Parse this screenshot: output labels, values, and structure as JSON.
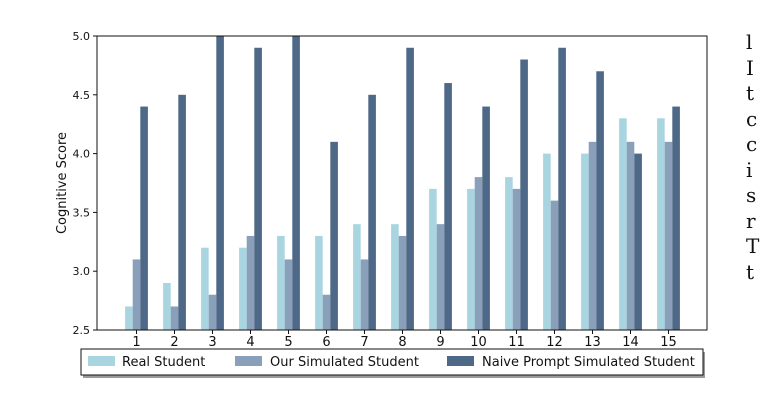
{
  "chart_data": {
    "type": "bar",
    "title": "",
    "xlabel": "",
    "ylabel": "Cognitive Score",
    "ylim": [
      2.5,
      5.0
    ],
    "yticks": [
      "2.5",
      "3.0",
      "3.5",
      "4.0",
      "4.5",
      "5.0"
    ],
    "categories": [
      "1",
      "2",
      "3",
      "4",
      "5",
      "6",
      "7",
      "8",
      "9",
      "10",
      "11",
      "12",
      "13",
      "14",
      "15"
    ],
    "series": [
      {
        "name": "Real Student",
        "color": "#a8d5df",
        "values": [
          2.7,
          2.9,
          3.2,
          3.2,
          3.3,
          3.3,
          3.4,
          3.4,
          3.7,
          3.7,
          3.8,
          4.0,
          4.0,
          4.3,
          4.3
        ]
      },
      {
        "name": "Our Simulated Student",
        "color": "#8a9fba",
        "values": [
          3.1,
          2.7,
          2.8,
          3.3,
          3.1,
          2.8,
          3.1,
          3.3,
          3.4,
          3.8,
          3.7,
          3.6,
          4.1,
          4.1,
          4.1
        ]
      },
      {
        "name": "Naive Prompt Simulated Student",
        "color": "#4e6987",
        "values": [
          4.4,
          4.5,
          5.0,
          4.9,
          5.0,
          4.1,
          4.5,
          4.9,
          4.6,
          4.4,
          4.8,
          4.9,
          4.7,
          4.0,
          4.4
        ]
      }
    ],
    "grid": false,
    "legend_position": "bottom"
  },
  "page_edge_glyphs": [
    "l",
    "I",
    "t",
    "c",
    "c",
    "i",
    "s",
    "r",
    "T",
    "t"
  ]
}
